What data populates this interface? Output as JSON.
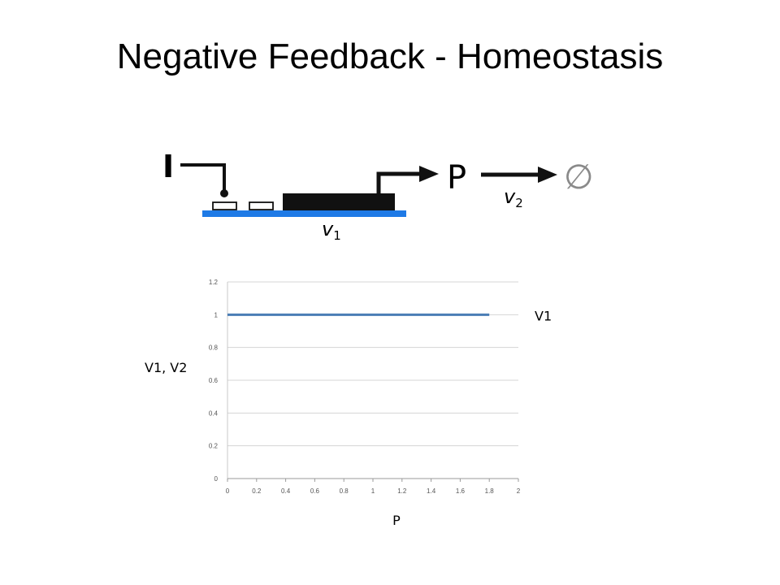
{
  "slide": {
    "title": "Negative Feedback - Homeostasis"
  },
  "diagram": {
    "inducer_label": "I",
    "product_label": "P",
    "degraded_symbol": "∅",
    "rate1_base": "v",
    "rate1_sub": "1",
    "rate2_base": "v",
    "rate2_sub": "2",
    "colors": {
      "dna": "#1e7ae6",
      "gene": "#111111",
      "degraded": "#8a8a8a"
    }
  },
  "chart_data": {
    "type": "line",
    "xlabel": "P",
    "ylabel": "V1, V2",
    "xlim": [
      0,
      2
    ],
    "ylim": [
      0,
      1.2
    ],
    "x_ticks": [
      "0",
      "0.2",
      "0.4",
      "0.6",
      "0.8",
      "1",
      "1.2",
      "1.4",
      "1.6",
      "1.8",
      "2"
    ],
    "y_ticks": [
      "0",
      "0.2",
      "0.4",
      "0.6",
      "0.8",
      "1",
      "1.2"
    ],
    "grid": true,
    "series": [
      {
        "name": "V1",
        "color": "#4a7db5",
        "x": [
          0,
          1.8
        ],
        "y": [
          1,
          1
        ]
      }
    ]
  }
}
